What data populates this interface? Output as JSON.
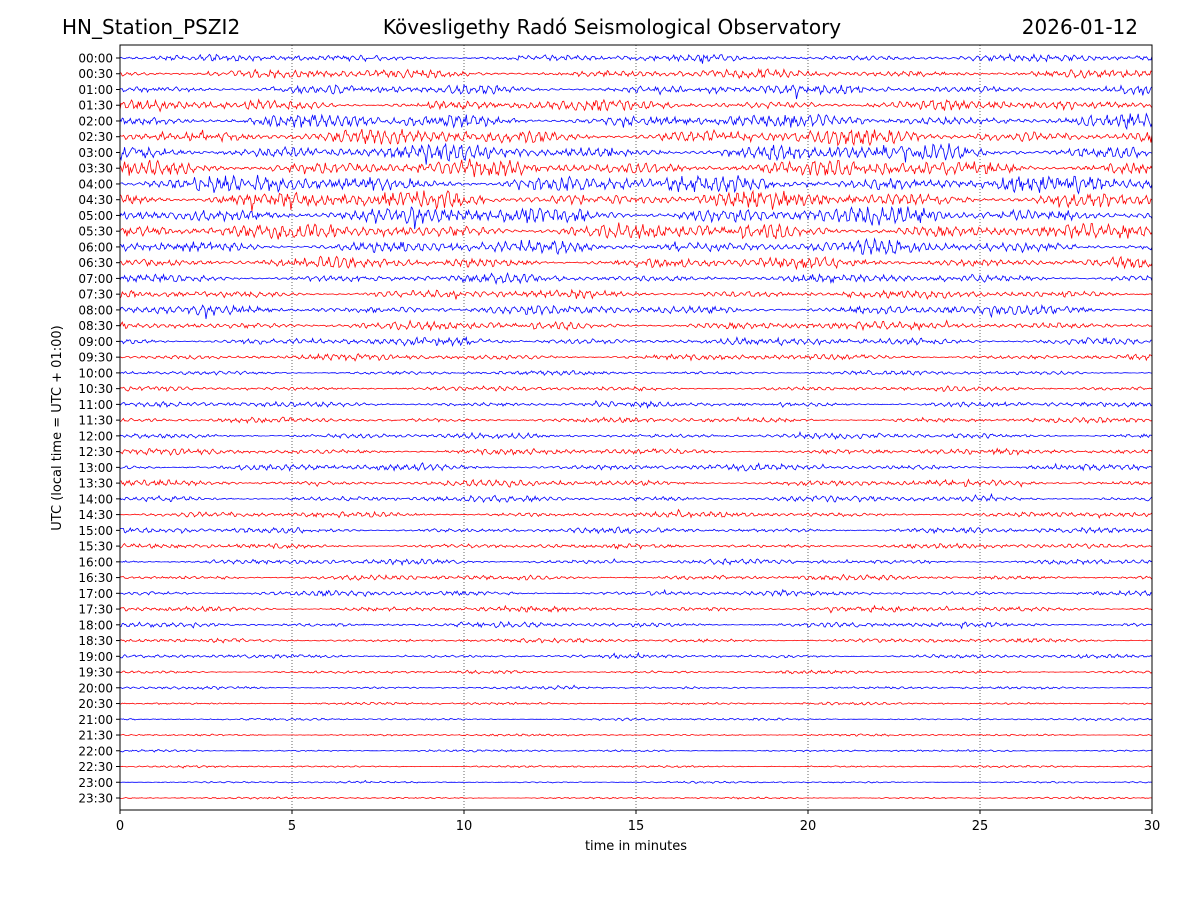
{
  "header": {
    "station": "HN_Station_PSZI2",
    "observatory": "Kövesligethy Radó Seismological Observatory",
    "date": "2026-01-12"
  },
  "chart_data": {
    "type": "line",
    "title": "Kövesligethy Radó Seismological Observatory",
    "xlabel": "time in minutes",
    "ylabel": "UTC (local time = UTC + 01:00)",
    "xlim": [
      0,
      30
    ],
    "xticks": [
      "0",
      "5",
      "10",
      "15",
      "20",
      "25",
      "30"
    ],
    "grid": "vertical dotted at x ticks",
    "colors": [
      "#0000ff",
      "#ff0000"
    ],
    "rows": [
      "00:00",
      "00:30",
      "01:00",
      "01:30",
      "02:00",
      "02:30",
      "03:00",
      "03:30",
      "04:00",
      "04:30",
      "05:00",
      "05:30",
      "06:00",
      "06:30",
      "07:00",
      "07:30",
      "08:00",
      "08:30",
      "09:00",
      "09:30",
      "10:00",
      "10:30",
      "11:00",
      "11:30",
      "12:00",
      "12:30",
      "13:00",
      "13:30",
      "14:00",
      "14:30",
      "15:00",
      "15:30",
      "16:00",
      "16:30",
      "17:00",
      "17:30",
      "18:00",
      "18:30",
      "19:00",
      "19:30",
      "20:00",
      "20:30",
      "21:00",
      "21:30",
      "22:00",
      "22:30",
      "23:00",
      "23:30"
    ],
    "relative_amplitude": [
      0.45,
      0.55,
      0.6,
      0.65,
      0.85,
      0.95,
      1.0,
      1.0,
      1.1,
      1.1,
      1.1,
      1.0,
      0.85,
      0.7,
      0.55,
      0.55,
      0.6,
      0.55,
      0.5,
      0.4,
      0.28,
      0.3,
      0.35,
      0.33,
      0.35,
      0.4,
      0.42,
      0.4,
      0.38,
      0.35,
      0.35,
      0.33,
      0.35,
      0.33,
      0.33,
      0.35,
      0.33,
      0.28,
      0.25,
      0.2,
      0.18,
      0.17,
      0.15,
      0.14,
      0.14,
      0.13,
      0.12,
      0.12
    ]
  }
}
